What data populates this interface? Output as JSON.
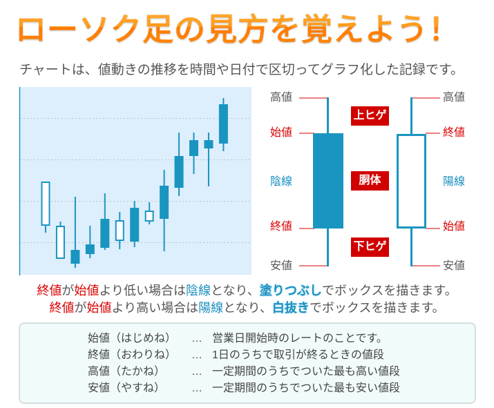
{
  "title": "ローソク足の見方を覚えよう！",
  "subtitle": "チャートは、値動きの推移を時間や日付で区切ってグラフ化した記録です。",
  "colors": {
    "candle": "#1a95c0",
    "chart_bg": "#ddeefd",
    "label_red": "#d80000",
    "label_blue": "#1a8fc0",
    "title_orange": "#ff8a10",
    "badge_red": "#d10000"
  },
  "chart_data": {
    "type": "candlestick",
    "title": "",
    "xlabel": "",
    "ylabel": "",
    "ylim": [
      2,
      274
    ],
    "grid": "horizontal-dotted",
    "candles": [
      {
        "open": 73,
        "high": 137,
        "low": 63,
        "close": 137
      },
      {
        "open": 25,
        "high": 79,
        "low": 25,
        "close": 73
      },
      {
        "open": 38,
        "high": 115,
        "low": 12,
        "close": 18
      },
      {
        "open": 46,
        "high": 73,
        "low": 26,
        "close": 32
      },
      {
        "open": 83,
        "high": 120,
        "low": 38,
        "close": 41
      },
      {
        "open": 51,
        "high": 93,
        "low": 39,
        "close": 81
      },
      {
        "open": 99,
        "high": 109,
        "low": 42,
        "close": 50
      },
      {
        "open": 79,
        "high": 107,
        "low": 75,
        "close": 95
      },
      {
        "open": 131,
        "high": 154,
        "low": 36,
        "close": 83
      },
      {
        "open": 174,
        "high": 208,
        "low": 116,
        "close": 128
      },
      {
        "open": 197,
        "high": 208,
        "low": 148,
        "close": 174
      },
      {
        "open": 197,
        "high": 208,
        "low": 130,
        "close": 185
      },
      {
        "open": 249,
        "high": 258,
        "low": 181,
        "close": 192
      }
    ]
  },
  "diagram": {
    "bear": {
      "high": "高値",
      "open": "始値",
      "type": "陰線",
      "close": "終値",
      "low": "安値"
    },
    "bull": {
      "high": "高値",
      "close": "終値",
      "type": "陽線",
      "open": "始値",
      "low": "安値"
    },
    "badges": {
      "upper": "上ヒゲ",
      "body": "胴体",
      "lower": "下ヒゲ"
    }
  },
  "explanation": [
    {
      "close": "終値",
      "ga": "が",
      "open": "始値",
      "mid": "より低い場合は",
      "type": "陰線",
      "mid2": "となり、",
      "hl": "塗りつぶし",
      "end": "でボックスを描きます。"
    },
    {
      "close": "終値",
      "ga": "が",
      "open": "始値",
      "mid": "より高い場合は",
      "type": "陽線",
      "mid2": "となり、",
      "hl": "白抜き",
      "end": "でボックスを描きます。"
    }
  ],
  "glossary": [
    {
      "term": "始値（はじめね）",
      "sep": "…",
      "desc": "営業日開始時のレートのことです。"
    },
    {
      "term": "終値（おわりね）",
      "sep": "…",
      "desc": "1日のうちで取引が終るときの値段"
    },
    {
      "term": "高値（たかね）",
      "sep": "…",
      "desc": "一定期間のうちでついた最も高い値段"
    },
    {
      "term": "安値（やすね）",
      "sep": "…",
      "desc": "一定期間のうちでついた最も安い値段"
    }
  ]
}
